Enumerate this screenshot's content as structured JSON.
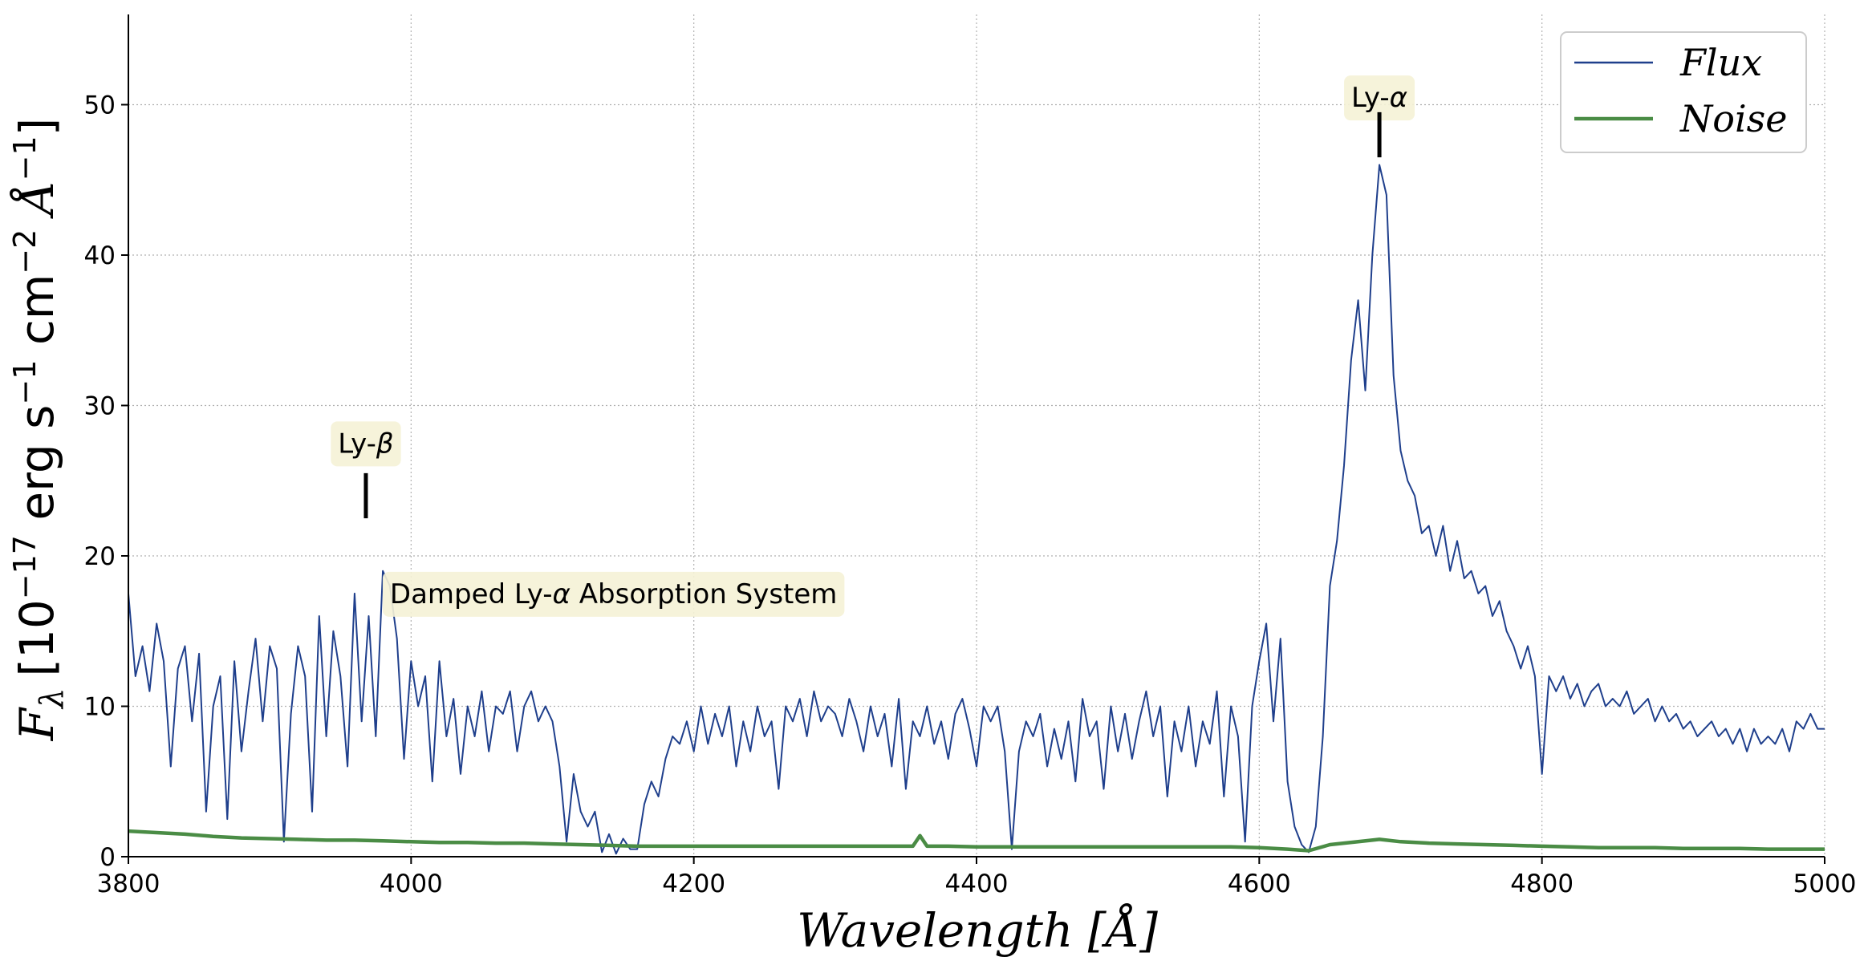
{
  "chart_data": {
    "type": "line",
    "xlabel": "Wavelength [Å]",
    "ylabel": "F_λ [10^−17 erg s^−1 cm^−2 Å^−1]",
    "xlim": [
      3800,
      5000
    ],
    "ylim": [
      0,
      56
    ],
    "x_ticks": [
      3800,
      4000,
      4200,
      4400,
      4600,
      4800,
      5000
    ],
    "y_ticks": [
      0,
      10,
      20,
      30,
      40,
      50
    ],
    "grid": true,
    "legend_position": "top-right",
    "series": [
      {
        "name": "Flux",
        "color": "#1f3f8c",
        "points": [
          [
            3800,
            17.5
          ],
          [
            3805,
            12
          ],
          [
            3810,
            14
          ],
          [
            3815,
            11
          ],
          [
            3820,
            15.5
          ],
          [
            3825,
            13
          ],
          [
            3830,
            6
          ],
          [
            3835,
            12.5
          ],
          [
            3840,
            14
          ],
          [
            3845,
            9
          ],
          [
            3850,
            13.5
          ],
          [
            3855,
            3
          ],
          [
            3860,
            10
          ],
          [
            3865,
            12
          ],
          [
            3870,
            2.5
          ],
          [
            3875,
            13
          ],
          [
            3880,
            7
          ],
          [
            3885,
            11
          ],
          [
            3890,
            14.5
          ],
          [
            3895,
            9
          ],
          [
            3900,
            14
          ],
          [
            3905,
            12.5
          ],
          [
            3910,
            1
          ],
          [
            3915,
            9.5
          ],
          [
            3920,
            14
          ],
          [
            3925,
            12
          ],
          [
            3930,
            3
          ],
          [
            3935,
            16
          ],
          [
            3940,
            8
          ],
          [
            3945,
            15
          ],
          [
            3950,
            12
          ],
          [
            3955,
            6
          ],
          [
            3960,
            17.5
          ],
          [
            3965,
            9
          ],
          [
            3970,
            16
          ],
          [
            3975,
            8
          ],
          [
            3980,
            19
          ],
          [
            3985,
            18
          ],
          [
            3990,
            14.5
          ],
          [
            3995,
            6.5
          ],
          [
            4000,
            13
          ],
          [
            4005,
            10
          ],
          [
            4010,
            12
          ],
          [
            4015,
            5
          ],
          [
            4020,
            13
          ],
          [
            4025,
            8
          ],
          [
            4030,
            10.5
          ],
          [
            4035,
            5.5
          ],
          [
            4040,
            10
          ],
          [
            4045,
            8
          ],
          [
            4050,
            11
          ],
          [
            4055,
            7
          ],
          [
            4060,
            10
          ],
          [
            4065,
            9.5
          ],
          [
            4070,
            11
          ],
          [
            4075,
            7
          ],
          [
            4080,
            10
          ],
          [
            4085,
            11
          ],
          [
            4090,
            9
          ],
          [
            4095,
            10
          ],
          [
            4100,
            9
          ],
          [
            4105,
            6
          ],
          [
            4110,
            1
          ],
          [
            4115,
            5.5
          ],
          [
            4120,
            3
          ],
          [
            4125,
            2
          ],
          [
            4130,
            3
          ],
          [
            4135,
            0.3
          ],
          [
            4140,
            1.5
          ],
          [
            4145,
            0.2
          ],
          [
            4150,
            1.2
          ],
          [
            4155,
            0.5
          ],
          [
            4160,
            0.5
          ],
          [
            4165,
            3.5
          ],
          [
            4170,
            5
          ],
          [
            4175,
            4
          ],
          [
            4180,
            6.5
          ],
          [
            4185,
            8
          ],
          [
            4190,
            7.5
          ],
          [
            4195,
            9
          ],
          [
            4200,
            7
          ],
          [
            4205,
            10
          ],
          [
            4210,
            7.5
          ],
          [
            4215,
            9.5
          ],
          [
            4220,
            8
          ],
          [
            4225,
            10
          ],
          [
            4230,
            6
          ],
          [
            4235,
            9
          ],
          [
            4240,
            7
          ],
          [
            4245,
            10
          ],
          [
            4250,
            8
          ],
          [
            4255,
            9
          ],
          [
            4260,
            4.5
          ],
          [
            4265,
            10
          ],
          [
            4270,
            9
          ],
          [
            4275,
            10.5
          ],
          [
            4280,
            8
          ],
          [
            4285,
            11
          ],
          [
            4290,
            9
          ],
          [
            4295,
            10
          ],
          [
            4300,
            9.5
          ],
          [
            4305,
            8
          ],
          [
            4310,
            10.5
          ],
          [
            4315,
            9
          ],
          [
            4320,
            7
          ],
          [
            4325,
            10
          ],
          [
            4330,
            8
          ],
          [
            4335,
            9.5
          ],
          [
            4340,
            6
          ],
          [
            4345,
            10.5
          ],
          [
            4350,
            4.5
          ],
          [
            4355,
            9
          ],
          [
            4360,
            8
          ],
          [
            4365,
            10
          ],
          [
            4370,
            7.5
          ],
          [
            4375,
            9
          ],
          [
            4380,
            6.5
          ],
          [
            4385,
            9.5
          ],
          [
            4390,
            10.5
          ],
          [
            4395,
            8.5
          ],
          [
            4400,
            6
          ],
          [
            4405,
            10
          ],
          [
            4410,
            9
          ],
          [
            4415,
            10
          ],
          [
            4420,
            7
          ],
          [
            4425,
            0.5
          ],
          [
            4430,
            7
          ],
          [
            4435,
            9
          ],
          [
            4440,
            8
          ],
          [
            4445,
            9.5
          ],
          [
            4450,
            6
          ],
          [
            4455,
            8.5
          ],
          [
            4460,
            6.5
          ],
          [
            4465,
            9
          ],
          [
            4470,
            5
          ],
          [
            4475,
            10.5
          ],
          [
            4480,
            8
          ],
          [
            4485,
            9
          ],
          [
            4490,
            4.5
          ],
          [
            4495,
            10
          ],
          [
            4500,
            7
          ],
          [
            4505,
            9.5
          ],
          [
            4510,
            6.5
          ],
          [
            4515,
            9
          ],
          [
            4520,
            11
          ],
          [
            4525,
            8
          ],
          [
            4530,
            10
          ],
          [
            4535,
            4
          ],
          [
            4540,
            9
          ],
          [
            4545,
            7
          ],
          [
            4550,
            10
          ],
          [
            4555,
            6
          ],
          [
            4560,
            9
          ],
          [
            4565,
            7.5
          ],
          [
            4570,
            11
          ],
          [
            4575,
            4
          ],
          [
            4580,
            10
          ],
          [
            4585,
            8
          ],
          [
            4590,
            1
          ],
          [
            4595,
            10
          ],
          [
            4600,
            13
          ],
          [
            4605,
            15.5
          ],
          [
            4610,
            9
          ],
          [
            4615,
            14.5
          ],
          [
            4620,
            5
          ],
          [
            4625,
            2
          ],
          [
            4630,
            0.8
          ],
          [
            4635,
            0.3
          ],
          [
            4640,
            2
          ],
          [
            4645,
            8
          ],
          [
            4650,
            18
          ],
          [
            4655,
            21
          ],
          [
            4660,
            26
          ],
          [
            4665,
            33
          ],
          [
            4670,
            37
          ],
          [
            4675,
            31
          ],
          [
            4680,
            40
          ],
          [
            4685,
            46
          ],
          [
            4690,
            44
          ],
          [
            4695,
            32
          ],
          [
            4700,
            27
          ],
          [
            4705,
            25
          ],
          [
            4710,
            24
          ],
          [
            4715,
            21.5
          ],
          [
            4720,
            22
          ],
          [
            4725,
            20
          ],
          [
            4730,
            22
          ],
          [
            4735,
            19
          ],
          [
            4740,
            21
          ],
          [
            4745,
            18.5
          ],
          [
            4750,
            19
          ],
          [
            4755,
            17.5
          ],
          [
            4760,
            18
          ],
          [
            4765,
            16
          ],
          [
            4770,
            17
          ],
          [
            4775,
            15
          ],
          [
            4780,
            14
          ],
          [
            4785,
            12.5
          ],
          [
            4790,
            14
          ],
          [
            4795,
            12
          ],
          [
            4800,
            5.5
          ],
          [
            4805,
            12
          ],
          [
            4810,
            11
          ],
          [
            4815,
            12
          ],
          [
            4820,
            10.5
          ],
          [
            4825,
            11.5
          ],
          [
            4830,
            10
          ],
          [
            4835,
            11
          ],
          [
            4840,
            11.5
          ],
          [
            4845,
            10
          ],
          [
            4850,
            10.5
          ],
          [
            4855,
            10
          ],
          [
            4860,
            11
          ],
          [
            4865,
            9.5
          ],
          [
            4870,
            10
          ],
          [
            4875,
            10.5
          ],
          [
            4880,
            9
          ],
          [
            4885,
            10
          ],
          [
            4890,
            9
          ],
          [
            4895,
            9.5
          ],
          [
            4900,
            8.5
          ],
          [
            4905,
            9
          ],
          [
            4910,
            8
          ],
          [
            4915,
            8.5
          ],
          [
            4920,
            9
          ],
          [
            4925,
            8
          ],
          [
            4930,
            8.5
          ],
          [
            4935,
            7.5
          ],
          [
            4940,
            8.5
          ],
          [
            4945,
            7
          ],
          [
            4950,
            8.5
          ],
          [
            4955,
            7.5
          ],
          [
            4960,
            8
          ],
          [
            4965,
            7.5
          ],
          [
            4970,
            8.5
          ],
          [
            4975,
            7
          ],
          [
            4980,
            9
          ],
          [
            4985,
            8.5
          ],
          [
            4990,
            9.5
          ],
          [
            4995,
            8.5
          ],
          [
            5000,
            8.5
          ]
        ]
      },
      {
        "name": "Noise",
        "color": "#4a8c45",
        "points": [
          [
            3800,
            1.7
          ],
          [
            3820,
            1.6
          ],
          [
            3840,
            1.5
          ],
          [
            3860,
            1.35
          ],
          [
            3880,
            1.25
          ],
          [
            3900,
            1.2
          ],
          [
            3920,
            1.15
          ],
          [
            3940,
            1.1
          ],
          [
            3960,
            1.1
          ],
          [
            3980,
            1.05
          ],
          [
            4000,
            1.0
          ],
          [
            4020,
            0.95
          ],
          [
            4040,
            0.95
          ],
          [
            4060,
            0.9
          ],
          [
            4080,
            0.9
          ],
          [
            4100,
            0.85
          ],
          [
            4120,
            0.8
          ],
          [
            4140,
            0.75
          ],
          [
            4160,
            0.7
          ],
          [
            4180,
            0.7
          ],
          [
            4200,
            0.7
          ],
          [
            4220,
            0.7
          ],
          [
            4240,
            0.7
          ],
          [
            4260,
            0.7
          ],
          [
            4280,
            0.7
          ],
          [
            4300,
            0.7
          ],
          [
            4320,
            0.7
          ],
          [
            4340,
            0.7
          ],
          [
            4355,
            0.7
          ],
          [
            4360,
            1.4
          ],
          [
            4365,
            0.7
          ],
          [
            4380,
            0.7
          ],
          [
            4400,
            0.65
          ],
          [
            4420,
            0.65
          ],
          [
            4440,
            0.65
          ],
          [
            4460,
            0.65
          ],
          [
            4480,
            0.65
          ],
          [
            4500,
            0.65
          ],
          [
            4520,
            0.65
          ],
          [
            4540,
            0.65
          ],
          [
            4560,
            0.65
          ],
          [
            4580,
            0.65
          ],
          [
            4600,
            0.6
          ],
          [
            4620,
            0.5
          ],
          [
            4635,
            0.4
          ],
          [
            4650,
            0.8
          ],
          [
            4670,
            1.0
          ],
          [
            4685,
            1.15
          ],
          [
            4700,
            1.0
          ],
          [
            4720,
            0.9
          ],
          [
            4740,
            0.85
          ],
          [
            4760,
            0.8
          ],
          [
            4780,
            0.75
          ],
          [
            4800,
            0.7
          ],
          [
            4820,
            0.65
          ],
          [
            4840,
            0.6
          ],
          [
            4860,
            0.6
          ],
          [
            4880,
            0.6
          ],
          [
            4900,
            0.55
          ],
          [
            4920,
            0.55
          ],
          [
            4940,
            0.55
          ],
          [
            4960,
            0.5
          ],
          [
            4980,
            0.5
          ],
          [
            5000,
            0.5
          ]
        ]
      }
    ],
    "annotations": [
      {
        "label_main": "Ly-",
        "label_greek": "β",
        "x": 3968,
        "y_line": [
          22.5,
          25.5
        ],
        "y_text": 27.5
      },
      {
        "label_main": "Ly-",
        "label_greek": "α",
        "x": 4685,
        "y_line": [
          46.5,
          49.5
        ],
        "y_text": 50.5
      },
      {
        "label_main": "Damped Ly-",
        "label_greek": "α",
        "label_tail": " Absorption System",
        "x": 3985,
        "y_text": 17.5
      }
    ]
  },
  "axis_titles": {
    "x": "Wavelength [Å]",
    "y_f": "F",
    "y_sub": "λ",
    "y_rest_1": "[10",
    "y_sup1": "−17",
    "y_rest_2": " erg s",
    "y_sup2": "−1",
    "y_rest_3": " cm",
    "y_sup3": "−2",
    "y_rest_4": " Å",
    "y_sup4": "−1",
    "y_rest_5": "]"
  },
  "legend": {
    "items": [
      {
        "label": "Flux",
        "color": "#1f3f8c"
      },
      {
        "label": "Noise",
        "color": "#4a8c45"
      }
    ]
  }
}
